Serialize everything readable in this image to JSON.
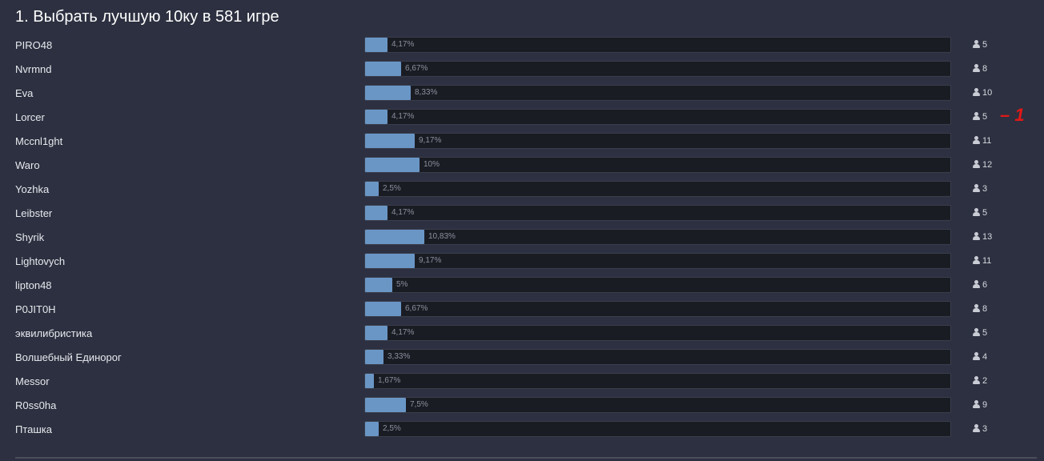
{
  "poll": {
    "title": "1. Выбрать лучшую 10ку в 581 игре",
    "annotation": "– 1",
    "options": [
      {
        "label": "PIRO48",
        "percent_text": "4,17%",
        "percent": 4.17,
        "votes": "5"
      },
      {
        "label": "Nvrmnd",
        "percent_text": "6,67%",
        "percent": 6.67,
        "votes": "8"
      },
      {
        "label": "Eva",
        "percent_text": "8,33%",
        "percent": 8.33,
        "votes": "10"
      },
      {
        "label": "Lorcer",
        "percent_text": "4,17%",
        "percent": 4.17,
        "votes": "5"
      },
      {
        "label": "Mccnl1ght",
        "percent_text": "9,17%",
        "percent": 9.17,
        "votes": "11"
      },
      {
        "label": "Waro",
        "percent_text": "10%",
        "percent": 10,
        "votes": "12"
      },
      {
        "label": "Yozhka",
        "percent_text": "2,5%",
        "percent": 2.5,
        "votes": "3"
      },
      {
        "label": "Leibster",
        "percent_text": "4,17%",
        "percent": 4.17,
        "votes": "5"
      },
      {
        "label": "Shyrik",
        "percent_text": "10,83%",
        "percent": 10.83,
        "votes": "13"
      },
      {
        "label": "Lightovych",
        "percent_text": "9,17%",
        "percent": 9.17,
        "votes": "11"
      },
      {
        "label": "lipton48",
        "percent_text": "5%",
        "percent": 5,
        "votes": "6"
      },
      {
        "label": "P0JIT0H",
        "percent_text": "6,67%",
        "percent": 6.67,
        "votes": "8"
      },
      {
        "label": "эквилибристика",
        "percent_text": "4,17%",
        "percent": 4.17,
        "votes": "5"
      },
      {
        "label": "Волшебный Единорог",
        "percent_text": "3,33%",
        "percent": 3.33,
        "votes": "4"
      },
      {
        "label": "Messor",
        "percent_text": "1,67%",
        "percent": 1.67,
        "votes": "2"
      },
      {
        "label": "R0ss0ha",
        "percent_text": "7,5%",
        "percent": 7.5,
        "votes": "9"
      },
      {
        "label": "Пташка",
        "percent_text": "2,5%",
        "percent": 2.5,
        "votes": "3"
      }
    ]
  },
  "icons": {
    "votes_icon": "user-icon"
  },
  "colors": {
    "background": "#2c3040",
    "bar_fill": "#6a96c6",
    "bar_track": "#1a1c24",
    "annotation": "#e01818"
  }
}
